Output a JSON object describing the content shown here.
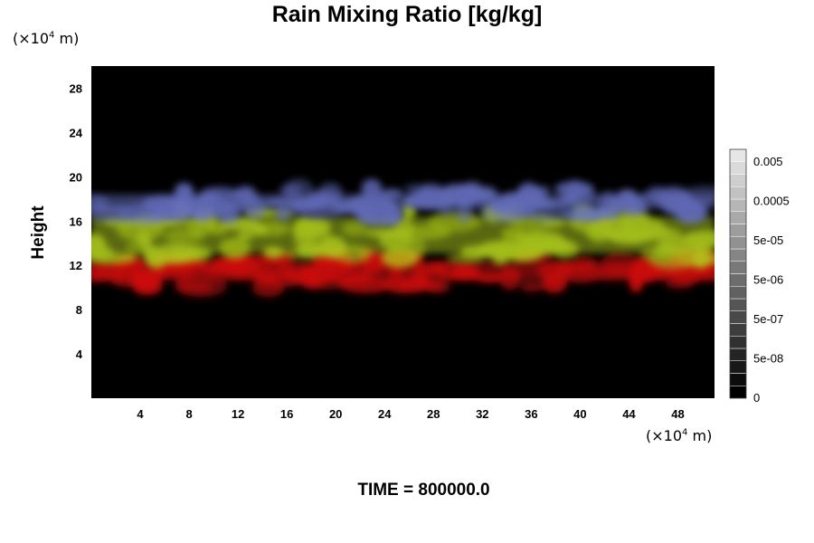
{
  "chart_data": {
    "type": "heatmap",
    "title": "Rain Mixing Ratio [kg/kg]",
    "ylabel": "Height",
    "xlabel": "",
    "x_unit": {
      "prefix": "(×10",
      "exp": "4",
      "suffix": " m)"
    },
    "y_unit": {
      "prefix": "(×10",
      "exp": "4",
      "suffix": " m)"
    },
    "xlim": [
      0,
      51
    ],
    "ylim": [
      0,
      30
    ],
    "x_ticks": [
      4,
      8,
      12,
      16,
      20,
      24,
      28,
      32,
      36,
      40,
      44,
      48
    ],
    "y_ticks": [
      4,
      8,
      12,
      16,
      20,
      24,
      28
    ],
    "background": "#000000",
    "layers": [
      {
        "name": "red",
        "color": "#e01010",
        "y_range": [
          10,
          13
        ]
      },
      {
        "name": "yellow-green",
        "color": "#b4d21c",
        "y_range": [
          12.5,
          17
        ]
      },
      {
        "name": "blue",
        "color": "#6a74c8",
        "y_range": [
          16.5,
          19
        ]
      }
    ],
    "colorbar": {
      "labels": [
        "0.005",
        "0.0005",
        "5e-05",
        "5e-06",
        "5e-07",
        "5e-08",
        "0"
      ],
      "levels": 20
    },
    "footer": "TIME = 800000.0"
  }
}
